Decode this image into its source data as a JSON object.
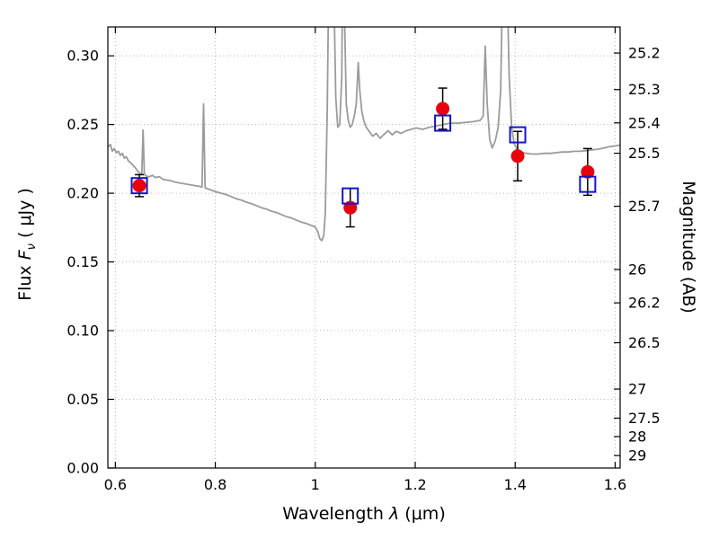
{
  "labels": {
    "xlabel_prefix": "Wavelength  ",
    "xlabel_lambda": "λ",
    "xlabel_suffix": " (μm)",
    "ylabel_flux_prefix": "Flux  ",
    "ylabel_flux_f": "F",
    "ylabel_flux_sub": "ν",
    "ylabel_flux_suffix": "  ( μJy )",
    "ylabel_right": "Magnitude (AB)"
  },
  "chart_data": {
    "type": "line",
    "title": "",
    "xlabel": "Wavelength λ (μm)",
    "ylabel": "Flux Fν ( μJy )",
    "ylabel_right": "Magnitude (AB)",
    "xlim": [
      0.585,
      1.61
    ],
    "ylim": [
      0.0,
      0.321
    ],
    "grid": true,
    "x_ticks": [
      0.6,
      0.8,
      1.0,
      1.2,
      1.4,
      1.6
    ],
    "x_tick_labels": [
      "0.6",
      "0.8",
      "1",
      "1.2",
      "1.4",
      "1.6"
    ],
    "y_ticks": [
      0.0,
      0.05,
      0.1,
      0.15,
      0.2,
      0.25,
      0.3
    ],
    "y_tick_labels": [
      "0.00",
      "0.05",
      "0.10",
      "0.15",
      "0.20",
      "0.25",
      "0.30"
    ],
    "right_axis": {
      "label": "Magnitude (AB)",
      "ticks": [
        {
          "label": "25.2",
          "flux": 0.302
        },
        {
          "label": "25.3",
          "flux": 0.2754
        },
        {
          "label": "25.4",
          "flux": 0.2512
        },
        {
          "label": "25.5",
          "flux": 0.2291
        },
        {
          "label": "25.7",
          "flux": 0.1905
        },
        {
          "label": "26",
          "flux": 0.1445
        },
        {
          "label": "26.2",
          "flux": 0.1202
        },
        {
          "label": "26.5",
          "flux": 0.0912
        },
        {
          "label": "27",
          "flux": 0.0575
        },
        {
          "label": "27.5",
          "flux": 0.0363
        },
        {
          "label": "28",
          "flux": 0.0229
        },
        {
          "label": "29",
          "flux": 0.0091
        }
      ]
    },
    "style": {
      "spectrum_color": "#9b9b9b",
      "point_color": "#e8000d",
      "square_color": "#1414cc",
      "errorbar_color": "#000000",
      "grid_color": "#b8b8b8",
      "axis_color": "#000000",
      "background": "#ffffff"
    },
    "series": [
      {
        "name": "model-spectrum",
        "type": "line",
        "points": [
          [
            0.585,
            0.2335
          ],
          [
            0.59,
            0.2355
          ],
          [
            0.594,
            0.2305
          ],
          [
            0.598,
            0.2325
          ],
          [
            0.602,
            0.2295
          ],
          [
            0.606,
            0.2305
          ],
          [
            0.61,
            0.2275
          ],
          [
            0.614,
            0.229
          ],
          [
            0.618,
            0.2255
          ],
          [
            0.622,
            0.2265
          ],
          [
            0.626,
            0.2235
          ],
          [
            0.63,
            0.2225
          ],
          [
            0.635,
            0.2205
          ],
          [
            0.64,
            0.2185
          ],
          [
            0.645,
            0.216
          ],
          [
            0.65,
            0.214
          ],
          [
            0.653,
            0.2145
          ],
          [
            0.6555,
            0.246
          ],
          [
            0.658,
            0.214
          ],
          [
            0.662,
            0.2125
          ],
          [
            0.668,
            0.212
          ],
          [
            0.674,
            0.213
          ],
          [
            0.68,
            0.2115
          ],
          [
            0.688,
            0.212
          ],
          [
            0.696,
            0.21
          ],
          [
            0.704,
            0.2095
          ],
          [
            0.712,
            0.209
          ],
          [
            0.72,
            0.208
          ],
          [
            0.728,
            0.2075
          ],
          [
            0.736,
            0.207
          ],
          [
            0.744,
            0.2065
          ],
          [
            0.752,
            0.206
          ],
          [
            0.76,
            0.2055
          ],
          [
            0.768,
            0.205
          ],
          [
            0.7735,
            0.2045
          ],
          [
            0.7765,
            0.265
          ],
          [
            0.7795,
            0.204
          ],
          [
            0.786,
            0.203
          ],
          [
            0.794,
            0.202
          ],
          [
            0.802,
            0.201
          ],
          [
            0.812,
            0.2
          ],
          [
            0.822,
            0.199
          ],
          [
            0.832,
            0.1975
          ],
          [
            0.842,
            0.196
          ],
          [
            0.852,
            0.195
          ],
          [
            0.862,
            0.1935
          ],
          [
            0.872,
            0.1925
          ],
          [
            0.882,
            0.191
          ],
          [
            0.892,
            0.1895
          ],
          [
            0.902,
            0.1885
          ],
          [
            0.912,
            0.187
          ],
          [
            0.922,
            0.186
          ],
          [
            0.932,
            0.1845
          ],
          [
            0.942,
            0.183
          ],
          [
            0.952,
            0.182
          ],
          [
            0.962,
            0.1805
          ],
          [
            0.972,
            0.179
          ],
          [
            0.982,
            0.178
          ],
          [
            0.992,
            0.1765
          ],
          [
            1.0,
            0.1755
          ],
          [
            1.005,
            0.172
          ],
          [
            1.009,
            0.167
          ],
          [
            1.013,
            0.1655
          ],
          [
            1.017,
            0.169
          ],
          [
            1.02,
            0.185
          ],
          [
            1.024,
            0.26
          ],
          [
            1.028,
            0.39
          ],
          [
            1.033,
            0.43
          ],
          [
            1.037,
            0.35
          ],
          [
            1.041,
            0.27
          ],
          [
            1.045,
            0.248
          ],
          [
            1.049,
            0.25
          ],
          [
            1.053,
            0.285
          ],
          [
            1.056,
            0.42
          ],
          [
            1.059,
            0.32
          ],
          [
            1.062,
            0.265
          ],
          [
            1.066,
            0.253
          ],
          [
            1.07,
            0.248
          ],
          [
            1.074,
            0.25
          ],
          [
            1.078,
            0.256
          ],
          [
            1.082,
            0.265
          ],
          [
            1.086,
            0.295
          ],
          [
            1.089,
            0.275
          ],
          [
            1.093,
            0.26
          ],
          [
            1.097,
            0.253
          ],
          [
            1.102,
            0.248
          ],
          [
            1.108,
            0.245
          ],
          [
            1.115,
            0.2415
          ],
          [
            1.122,
            0.2435
          ],
          [
            1.13,
            0.24
          ],
          [
            1.138,
            0.243
          ],
          [
            1.146,
            0.2455
          ],
          [
            1.154,
            0.2425
          ],
          [
            1.162,
            0.245
          ],
          [
            1.172,
            0.2435
          ],
          [
            1.182,
            0.2455
          ],
          [
            1.192,
            0.2465
          ],
          [
            1.202,
            0.2475
          ],
          [
            1.215,
            0.2465
          ],
          [
            1.228,
            0.248
          ],
          [
            1.242,
            0.249
          ],
          [
            1.256,
            0.25
          ],
          [
            1.27,
            0.251
          ],
          [
            1.285,
            0.251
          ],
          [
            1.3,
            0.2515
          ],
          [
            1.315,
            0.252
          ],
          [
            1.33,
            0.253
          ],
          [
            1.336,
            0.256
          ],
          [
            1.34,
            0.307
          ],
          [
            1.344,
            0.265
          ],
          [
            1.349,
            0.239
          ],
          [
            1.354,
            0.233
          ],
          [
            1.36,
            0.238
          ],
          [
            1.366,
            0.248
          ],
          [
            1.371,
            0.275
          ],
          [
            1.375,
            0.36
          ],
          [
            1.379,
            0.43
          ],
          [
            1.383,
            0.37
          ],
          [
            1.388,
            0.285
          ],
          [
            1.393,
            0.248
          ],
          [
            1.398,
            0.236
          ],
          [
            1.404,
            0.232
          ],
          [
            1.412,
            0.23
          ],
          [
            1.422,
            0.229
          ],
          [
            1.434,
            0.2285
          ],
          [
            1.446,
            0.2285
          ],
          [
            1.458,
            0.229
          ],
          [
            1.47,
            0.229
          ],
          [
            1.482,
            0.2295
          ],
          [
            1.494,
            0.23
          ],
          [
            1.506,
            0.23
          ],
          [
            1.518,
            0.2305
          ],
          [
            1.53,
            0.2305
          ],
          [
            1.542,
            0.231
          ],
          [
            1.554,
            0.2315
          ],
          [
            1.566,
            0.232
          ],
          [
            1.578,
            0.233
          ],
          [
            1.59,
            0.234
          ],
          [
            1.602,
            0.2345
          ],
          [
            1.61,
            0.235
          ]
        ]
      },
      {
        "name": "observed-photometry",
        "type": "errorbar-scatter",
        "marker": "filled-circle",
        "points": [
          {
            "x": 0.648,
            "y": 0.2055,
            "yerr": 0.008
          },
          {
            "x": 1.07,
            "y": 0.1895,
            "yerr": 0.014
          },
          {
            "x": 1.255,
            "y": 0.2615,
            "yerr": 0.015
          },
          {
            "x": 1.405,
            "y": 0.227,
            "yerr": 0.018
          },
          {
            "x": 1.545,
            "y": 0.2155,
            "yerr": 0.017
          }
        ]
      },
      {
        "name": "model-photometry",
        "type": "scatter",
        "marker": "open-square",
        "points": [
          {
            "x": 0.648,
            "y": 0.2055
          },
          {
            "x": 1.07,
            "y": 0.198
          },
          {
            "x": 1.255,
            "y": 0.251
          },
          {
            "x": 1.405,
            "y": 0.2425
          },
          {
            "x": 1.545,
            "y": 0.2065
          }
        ]
      }
    ]
  }
}
